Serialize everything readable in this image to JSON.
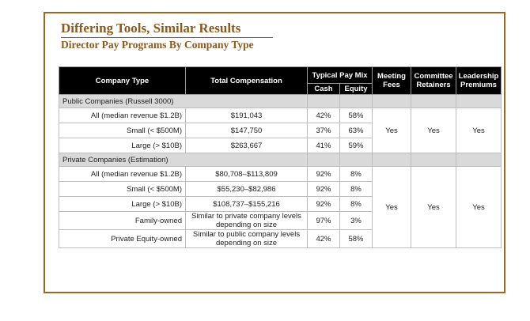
{
  "title": "Differing Tools, Similar Results",
  "subtitle": "Director Pay Programs By Company Type",
  "headers": {
    "company_type": "Company Type",
    "total_compensation": "Total Compensation",
    "typical_pay_mix": "Typical Pay Mix",
    "cash": "Cash",
    "equity": "Equity",
    "meeting_fees": "Meeting Fees",
    "committee_retainers": "Committee Retainers",
    "leadership_premiums": "Leadership Premiums"
  },
  "public": {
    "label": "Public Companies (Russell 3000)",
    "meeting_fees": "Yes",
    "committee_retainers": "Yes",
    "leadership_premiums": "Yes",
    "rows": [
      {
        "type": "All (median revenue $1.2B)",
        "total": "$191,043",
        "cash": "42%",
        "equity": "58%"
      },
      {
        "type": "Small (< $500M)",
        "total": "$147,750",
        "cash": "37%",
        "equity": "63%"
      },
      {
        "type": "Large (> $10B)",
        "total": "$263,667",
        "cash": "41%",
        "equity": "59%"
      }
    ]
  },
  "private": {
    "label": "Private Companies (Estimation)",
    "meeting_fees": "Yes",
    "committee_retainers": "Yes",
    "leadership_premiums": "Yes",
    "rows": [
      {
        "type": "All (median revenue $1.2B)",
        "total": "$80,708–$113,809",
        "cash": "92%",
        "equity": "8%"
      },
      {
        "type": "Small (< $500M)",
        "total": "$55,230–$82,986",
        "cash": "92%",
        "equity": "8%"
      },
      {
        "type": "Large (> $10B)",
        "total": "$108,737–$155,216",
        "cash": "92%",
        "equity": "8%"
      },
      {
        "type": "Family-owned",
        "total": "Similar to private company levels depending on size",
        "cash": "97%",
        "equity": "3%"
      },
      {
        "type": "Private Equity-owned",
        "total": "Similar to public company levels depending on size",
        "cash": "42%",
        "equity": "58%"
      }
    ]
  }
}
